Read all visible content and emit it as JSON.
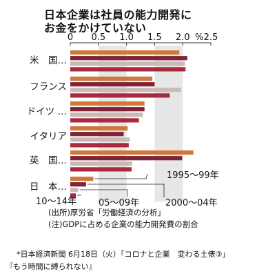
{
  "title_lines": [
    "日本企業は社員の能力開発に",
    "お金をかけていない"
  ],
  "source_note": "(出所)厚労省「労働経済の分析」",
  "gdp_note": "(注)GDPに占める企業の能力開発費の割合",
  "caption_line1": "*日本経済新聞 6月18日（火）「コロナと企業　変わる土俵③」",
  "caption_line2": "『もう時間に縛られない』",
  "chart_data": {
    "type": "bar",
    "orientation": "horizontal",
    "title": "日本企業は社員の能力開発にお金をかけていない",
    "categories": [
      "米　国…",
      "フランス",
      "ドイツ …",
      "イタリア",
      "英　国…",
      "日　本…"
    ],
    "period_labels": [
      "1995〜99年",
      "2000〜04年",
      "05〜09年",
      "10〜14年"
    ],
    "series": [
      {
        "name": "1995〜99年",
        "color": "#d0783a",
        "values": [
          1.94,
          1.46,
          1.32,
          1.02,
          2.19,
          0.41
        ]
      },
      {
        "name": "2000〜04年",
        "color": "#7e2436",
        "values": [
          2.08,
          1.5,
          1.32,
          0.95,
          1.99,
          0.28
        ]
      },
      {
        "name": "05〜09年",
        "color": "#cdb8b6",
        "values": [
          2.04,
          1.97,
          1.29,
          1.06,
          1.1,
          0.14
        ]
      },
      {
        "name": "10〜14年",
        "color": "#a82a3e",
        "values": [
          2.05,
          1.77,
          1.22,
          1.04,
          1.09,
          0.1
        ]
      }
    ],
    "unit": "%",
    "xlim": [
      0,
      2.5
    ],
    "ticks": [
      0,
      0.5,
      1.0,
      1.5,
      2.0,
      2.5
    ],
    "tick_labels": [
      "0",
      "0.5",
      "1.0",
      "1.5",
      "2.0",
      "2.5"
    ],
    "shaded_bands": [
      [
        0.5,
        1.0
      ],
      [
        1.5,
        2.0
      ]
    ],
    "colors": {
      "band": "#e7e7e7",
      "axis": "#333333"
    }
  }
}
